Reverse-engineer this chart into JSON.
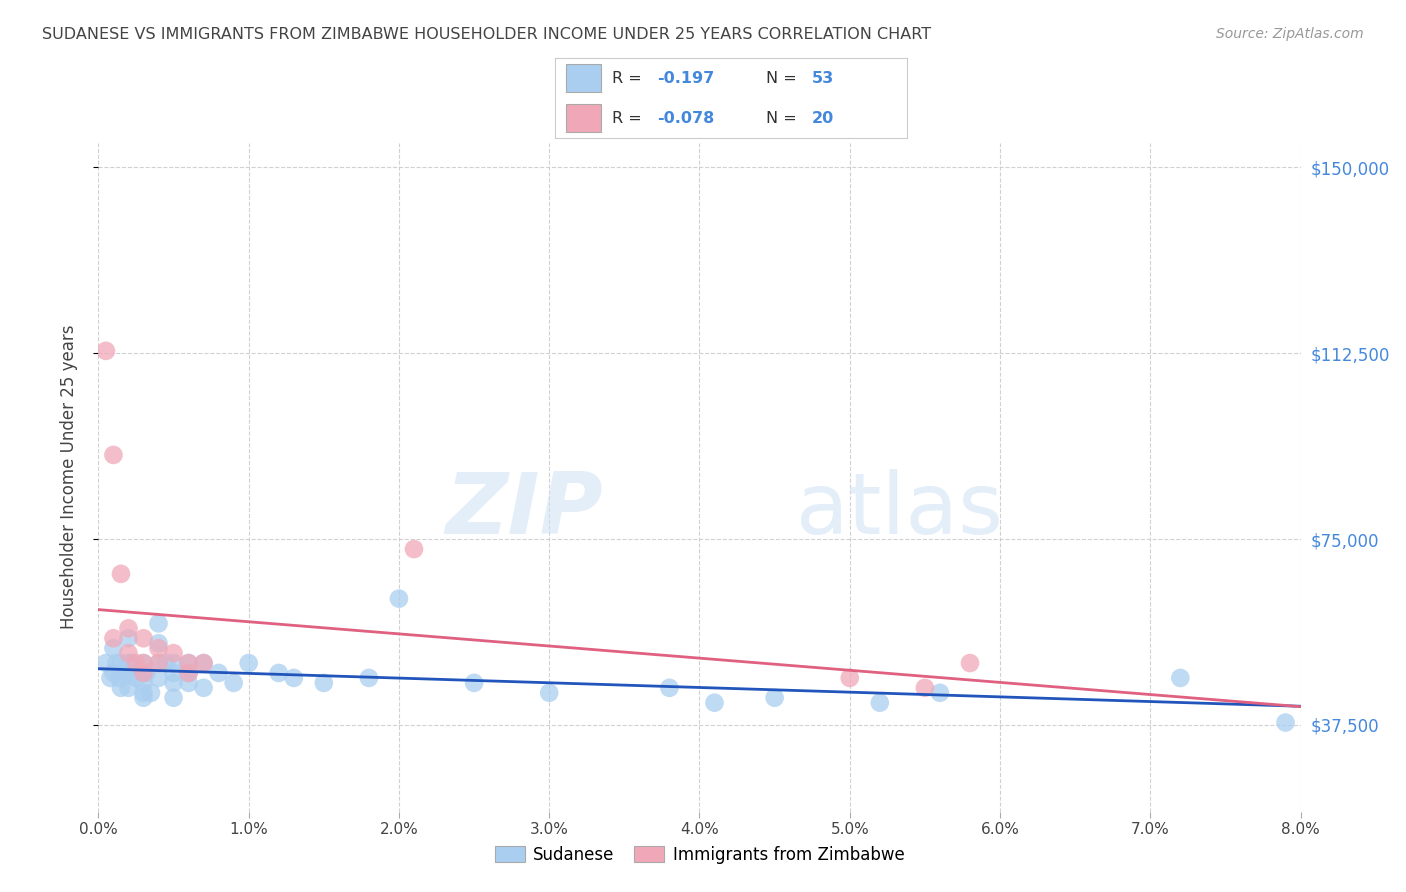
{
  "title": "SUDANESE VS IMMIGRANTS FROM ZIMBABWE HOUSEHOLDER INCOME UNDER 25 YEARS CORRELATION CHART",
  "source": "Source: ZipAtlas.com",
  "xlabel_ticks": [
    "0.0%",
    "1.0%",
    "2.0%",
    "3.0%",
    "4.0%",
    "5.0%",
    "6.0%",
    "7.0%",
    "8.0%"
  ],
  "ylabel_ticks": [
    "$37,500",
    "$75,000",
    "$112,500",
    "$150,000"
  ],
  "ylabel_values": [
    37500,
    75000,
    112500,
    150000
  ],
  "xlabel_values": [
    0.0,
    0.01,
    0.02,
    0.03,
    0.04,
    0.05,
    0.06,
    0.07,
    0.08
  ],
  "xlim": [
    0.0,
    0.08
  ],
  "ylim": [
    20000,
    155000
  ],
  "ylabel": "Householder Income Under 25 years",
  "watermark_zip": "ZIP",
  "watermark_atlas": "atlas",
  "legend_label1": "Sudanese",
  "legend_label2": "Immigrants from Zimbabwe",
  "R1": "-0.197",
  "N1": "53",
  "R2": "-0.078",
  "N2": "20",
  "color1": "#aacef0",
  "color2": "#f0a8b8",
  "trendline1_color": "#2255bb",
  "trendline2_color": "#e06080",
  "sudanese_x": [
    0.0005,
    0.0008,
    0.001,
    0.001,
    0.0012,
    0.0014,
    0.0015,
    0.0015,
    0.0018,
    0.002,
    0.002,
    0.002,
    0.002,
    0.0022,
    0.0025,
    0.003,
    0.003,
    0.003,
    0.003,
    0.003,
    0.0032,
    0.0035,
    0.004,
    0.004,
    0.004,
    0.004,
    0.0045,
    0.005,
    0.005,
    0.005,
    0.005,
    0.006,
    0.006,
    0.006,
    0.007,
    0.007,
    0.008,
    0.009,
    0.01,
    0.012,
    0.013,
    0.015,
    0.018,
    0.02,
    0.025,
    0.03,
    0.038,
    0.041,
    0.045,
    0.052,
    0.056,
    0.072,
    0.079
  ],
  "sudanese_y": [
    50000,
    47000,
    53000,
    48000,
    50000,
    47000,
    50000,
    45000,
    48000,
    55000,
    50000,
    48000,
    45000,
    50000,
    47000,
    50000,
    48000,
    46000,
    44000,
    43000,
    48000,
    44000,
    58000,
    54000,
    50000,
    47000,
    50000,
    50000,
    48000,
    46000,
    43000,
    50000,
    48000,
    46000,
    50000,
    45000,
    48000,
    46000,
    50000,
    48000,
    47000,
    46000,
    47000,
    63000,
    46000,
    44000,
    45000,
    42000,
    43000,
    42000,
    44000,
    47000,
    38000
  ],
  "zimbabwe_x": [
    0.0005,
    0.001,
    0.001,
    0.0015,
    0.002,
    0.002,
    0.0025,
    0.003,
    0.003,
    0.003,
    0.004,
    0.004,
    0.005,
    0.006,
    0.006,
    0.007,
    0.021,
    0.05,
    0.055,
    0.058
  ],
  "zimbabwe_y": [
    113000,
    92000,
    55000,
    68000,
    57000,
    52000,
    50000,
    55000,
    50000,
    48000,
    53000,
    50000,
    52000,
    50000,
    48000,
    50000,
    73000,
    47000,
    45000,
    50000
  ],
  "background_color": "#ffffff",
  "grid_color": "#cccccc",
  "title_color": "#444444",
  "right_tick_color": "#4488dd",
  "source_color": "#999999"
}
